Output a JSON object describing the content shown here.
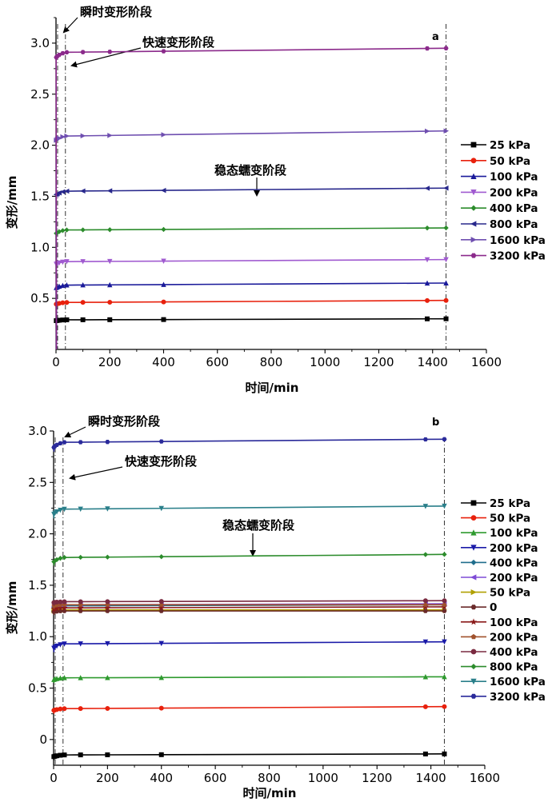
{
  "chart_data": [
    {
      "type": "line",
      "panel_label": "a",
      "xlabel": "时间/min",
      "ylabel": "变形/mm",
      "xlim": [
        0,
        1600
      ],
      "ylim": [
        0,
        3.25
      ],
      "xticks": [
        0,
        200,
        400,
        600,
        800,
        1000,
        1200,
        1400,
        1600
      ],
      "yticks": [
        0.5,
        1.0,
        1.5,
        2.0,
        2.5,
        3.0
      ],
      "ytick_labels": [
        "0.5",
        "1.0",
        "1.5",
        "2.0",
        "2.5",
        "3.0"
      ],
      "vlines": [
        0,
        35,
        1450
      ],
      "grid": false,
      "legend": "right",
      "series": [
        {
          "name": "25 kPa",
          "color": "#000000",
          "marker": "square",
          "y0": 0.28,
          "y1": 0.29,
          "y2": 0.3
        },
        {
          "name": "50 kPa",
          "color": "#e8210d",
          "marker": "circle",
          "y0": 0.44,
          "y1": 0.46,
          "y2": 0.48
        },
        {
          "name": "100 kPa",
          "color": "#1a1a9a",
          "marker": "triangle",
          "y0": 0.6,
          "y1": 0.63,
          "y2": 0.65
        },
        {
          "name": "200 kPa",
          "color": "#a05ad0",
          "marker": "tri-down",
          "y0": 0.83,
          "y1": 0.86,
          "y2": 0.88
        },
        {
          "name": "400 kPa",
          "color": "#2c8c2c",
          "marker": "diamond",
          "y0": 1.13,
          "y1": 1.17,
          "y2": 1.19
        },
        {
          "name": "800 kPa",
          "color": "#28288c",
          "marker": "tri-left",
          "y0": 1.51,
          "y1": 1.55,
          "y2": 1.58
        },
        {
          "name": "1600 kPa",
          "color": "#6f4fb0",
          "marker": "tri-right",
          "y0": 2.04,
          "y1": 2.09,
          "y2": 2.14
        },
        {
          "name": "3200 kPa",
          "color": "#8b2a8b",
          "marker": "hexagon",
          "y0": 2.85,
          "y1": 2.91,
          "y2": 2.95
        }
      ],
      "annotations": [
        "瞬时变形阶段",
        "快速变形阶段",
        "稳态蠕变阶段"
      ]
    },
    {
      "type": "line",
      "panel_label": "b",
      "xlabel": "时间/min",
      "ylabel": "变形/mm",
      "xlim": [
        0,
        1600
      ],
      "ylim": [
        -0.25,
        3.0
      ],
      "xticks": [
        0,
        200,
        400,
        600,
        800,
        1000,
        1200,
        1400,
        1600
      ],
      "yticks": [
        0,
        0.5,
        1.0,
        1.5,
        2.0,
        2.5,
        3.0
      ],
      "ytick_labels": [
        "0",
        "0.5",
        "1.0",
        "1.5",
        "2.0",
        "2.5",
        "3.0"
      ],
      "vlines": [
        0,
        35,
        1450
      ],
      "grid": false,
      "legend": "right",
      "series": [
        {
          "name": "25 kPa",
          "color": "#000000",
          "marker": "square",
          "y0": -0.17,
          "y1": -0.15,
          "y2": -0.14
        },
        {
          "name": "50 kPa",
          "color": "#e8210d",
          "marker": "circle",
          "y0": 0.28,
          "y1": 0.3,
          "y2": 0.32
        },
        {
          "name": "100 kPa",
          "color": "#2e9a2e",
          "marker": "triangle",
          "y0": 0.58,
          "y1": 0.6,
          "y2": 0.61
        },
        {
          "name": "200 kPa",
          "color": "#1a1aa8",
          "marker": "tri-down",
          "y0": 0.88,
          "y1": 0.93,
          "y2": 0.95
        },
        {
          "name": "400 kPa",
          "color": "#1f6d8c",
          "marker": "diamond",
          "y0": 1.28,
          "y1": 1.3,
          "y2": 1.31
        },
        {
          "name": "200 kPa",
          "color": "#7e4bd6",
          "marker": "tri-left",
          "y0": 1.29,
          "y1": 1.31,
          "y2": 1.32
        },
        {
          "name": "50 kPa",
          "color": "#b0a000",
          "marker": "tri-right",
          "y0": 1.25,
          "y1": 1.26,
          "y2": 1.26
        },
        {
          "name": "0",
          "color": "#6a2a2a",
          "marker": "hexagon",
          "y0": 1.24,
          "y1": 1.25,
          "y2": 1.25
        },
        {
          "name": "100 kPa",
          "color": "#8a1a1a",
          "marker": "star",
          "y0": 1.27,
          "y1": 1.28,
          "y2": 1.29
        },
        {
          "name": "200 kPa",
          "color": "#a0522d",
          "marker": "pentagon",
          "y0": 1.3,
          "y1": 1.31,
          "y2": 1.31
        },
        {
          "name": "400 kPa",
          "color": "#7a2a40",
          "marker": "circle",
          "y0": 1.33,
          "y1": 1.34,
          "y2": 1.35
        },
        {
          "name": "800 kPa",
          "color": "#2c8c2c",
          "marker": "diamond",
          "y0": 1.72,
          "y1": 1.77,
          "y2": 1.8
        },
        {
          "name": "1600 kPa",
          "color": "#2a7f8a",
          "marker": "tri-down",
          "y0": 2.18,
          "y1": 2.24,
          "y2": 2.27
        },
        {
          "name": "3200 kPa",
          "color": "#2a2a9a",
          "marker": "hexagon",
          "y0": 2.83,
          "y1": 2.89,
          "y2": 2.92
        }
      ],
      "annotations": [
        "瞬时变形阶段",
        "快速变形阶段",
        "稳态蠕变阶段"
      ]
    }
  ]
}
